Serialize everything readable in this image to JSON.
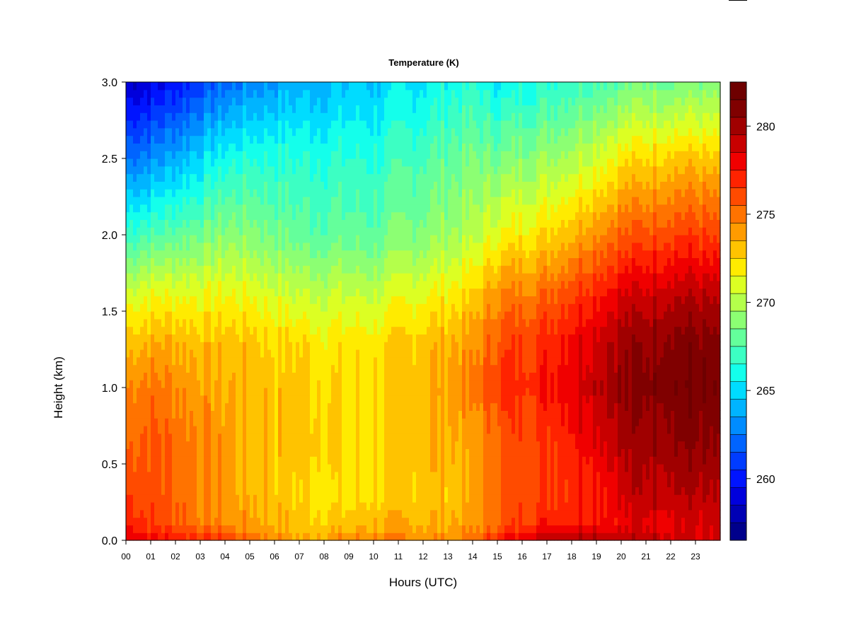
{
  "chart_data": {
    "type": "heatmap",
    "title": "Temperature (K)",
    "xlabel": "Hours (UTC)",
    "ylabel": "Height (km)",
    "x_ticks": [
      "00",
      "01",
      "02",
      "03",
      "04",
      "05",
      "06",
      "07",
      "08",
      "09",
      "10",
      "11",
      "12",
      "13",
      "14",
      "15",
      "16",
      "17",
      "18",
      "19",
      "20",
      "21",
      "22",
      "23"
    ],
    "y_ticks": [
      "0.0",
      "0.5",
      "1.0",
      "1.5",
      "2.0",
      "2.5",
      "3.0"
    ],
    "xlim": [
      0,
      24
    ],
    "ylim": [
      0,
      3.0
    ],
    "colorbar": {
      "levels": [
        257,
        283
      ],
      "step": 1,
      "ticks": [
        "260",
        "265",
        "270",
        "275",
        "280"
      ],
      "colors": [
        "#00008b",
        "#0000b4",
        "#0000dc",
        "#0014ff",
        "#003cff",
        "#0064ff",
        "#008cff",
        "#00b4ff",
        "#00dcff",
        "#14ffeb",
        "#3cffc3",
        "#64ff9b",
        "#8cff73",
        "#b4ff4b",
        "#dcff23",
        "#ffeb00",
        "#ffc300",
        "#ff9b00",
        "#ff7300",
        "#ff4b00",
        "#ff2300",
        "#f00000",
        "#c80000",
        "#a00000",
        "#800000",
        "#6e0000"
      ]
    },
    "grid": {
      "hours": [
        0,
        1,
        2,
        3,
        4,
        5,
        6,
        7,
        8,
        9,
        10,
        11,
        12,
        13,
        14,
        15,
        16,
        17,
        18,
        19,
        20,
        21,
        22,
        23,
        24
      ],
      "heights": [
        0,
        0.1,
        0.3,
        0.6,
        1.0,
        1.3,
        1.6,
        2.0,
        2.5,
        3.0
      ],
      "values": [
        [
          279.0,
          278.5,
          278.0,
          277.5,
          277.0,
          276.0,
          275.0,
          274.0,
          274.5,
          275.0,
          275.0,
          275.0,
          275.0,
          275.0,
          275.5,
          278.0,
          279.0,
          280.0,
          280.5,
          280.5,
          280.0,
          280.0,
          279.5,
          279.0,
          279.0
        ],
        [
          278.0,
          277.0,
          276.5,
          275.5,
          275.0,
          274.5,
          274.0,
          273.5,
          273.5,
          273.5,
          274.0,
          274.0,
          274.0,
          274.0,
          274.5,
          276.0,
          277.0,
          278.0,
          278.0,
          278.5,
          278.5,
          279.0,
          279.0,
          279.0,
          279.0
        ],
        [
          277.0,
          276.5,
          276.0,
          275.0,
          274.5,
          274.0,
          273.5,
          273.0,
          272.5,
          272.5,
          273.0,
          273.0,
          273.5,
          273.5,
          274.0,
          276.0,
          276.5,
          277.0,
          277.5,
          278.0,
          279.0,
          280.0,
          280.0,
          280.0,
          279.5
        ],
        [
          276.0,
          276.5,
          276.0,
          275.0,
          274.5,
          274.0,
          273.5,
          273.5,
          273.5,
          273.0,
          273.0,
          273.5,
          274.0,
          274.0,
          274.0,
          276.0,
          276.5,
          277.0,
          278.0,
          279.0,
          280.0,
          280.5,
          281.0,
          281.0,
          280.5
        ],
        [
          275.0,
          275.5,
          275.0,
          274.5,
          274.0,
          274.0,
          273.5,
          273.5,
          273.0,
          273.0,
          273.0,
          273.5,
          274.0,
          274.5,
          275.0,
          277.0,
          277.5,
          278.0,
          279.0,
          280.0,
          281.0,
          281.5,
          282.0,
          282.0,
          281.5
        ],
        [
          273.5,
          274.0,
          274.0,
          273.5,
          273.5,
          273.5,
          273.0,
          273.0,
          272.5,
          272.5,
          272.5,
          273.0,
          273.5,
          274.0,
          274.5,
          276.5,
          277.0,
          277.5,
          278.5,
          279.5,
          280.5,
          281.0,
          281.5,
          281.5,
          281.0
        ],
        [
          271.5,
          272.0,
          272.0,
          272.0,
          272.0,
          272.0,
          271.5,
          271.0,
          271.0,
          271.0,
          271.0,
          271.5,
          272.0,
          272.5,
          273.0,
          275.0,
          275.5,
          276.0,
          277.0,
          278.0,
          279.0,
          279.5,
          280.0,
          280.0,
          279.5
        ],
        [
          267.5,
          268.0,
          268.5,
          269.0,
          269.5,
          269.5,
          269.0,
          268.5,
          268.5,
          268.5,
          268.5,
          269.0,
          269.5,
          270.0,
          270.5,
          272.0,
          272.5,
          273.0,
          274.0,
          275.0,
          276.0,
          276.5,
          277.0,
          277.0,
          276.5
        ],
        [
          263.0,
          263.5,
          264.5,
          265.5,
          266.5,
          267.0,
          267.0,
          267.0,
          267.0,
          267.0,
          267.0,
          267.5,
          268.0,
          268.5,
          269.0,
          269.0,
          269.5,
          270.0,
          270.5,
          271.5,
          272.5,
          273.0,
          273.5,
          273.5,
          273.0
        ],
        [
          259.0,
          259.5,
          260.5,
          261.5,
          262.5,
          263.5,
          264.0,
          264.5,
          264.5,
          265.0,
          265.0,
          265.5,
          266.0,
          266.5,
          267.0,
          266.0,
          266.5,
          267.0,
          267.5,
          268.0,
          268.5,
          269.0,
          269.0,
          269.0,
          269.0
        ]
      ]
    }
  }
}
